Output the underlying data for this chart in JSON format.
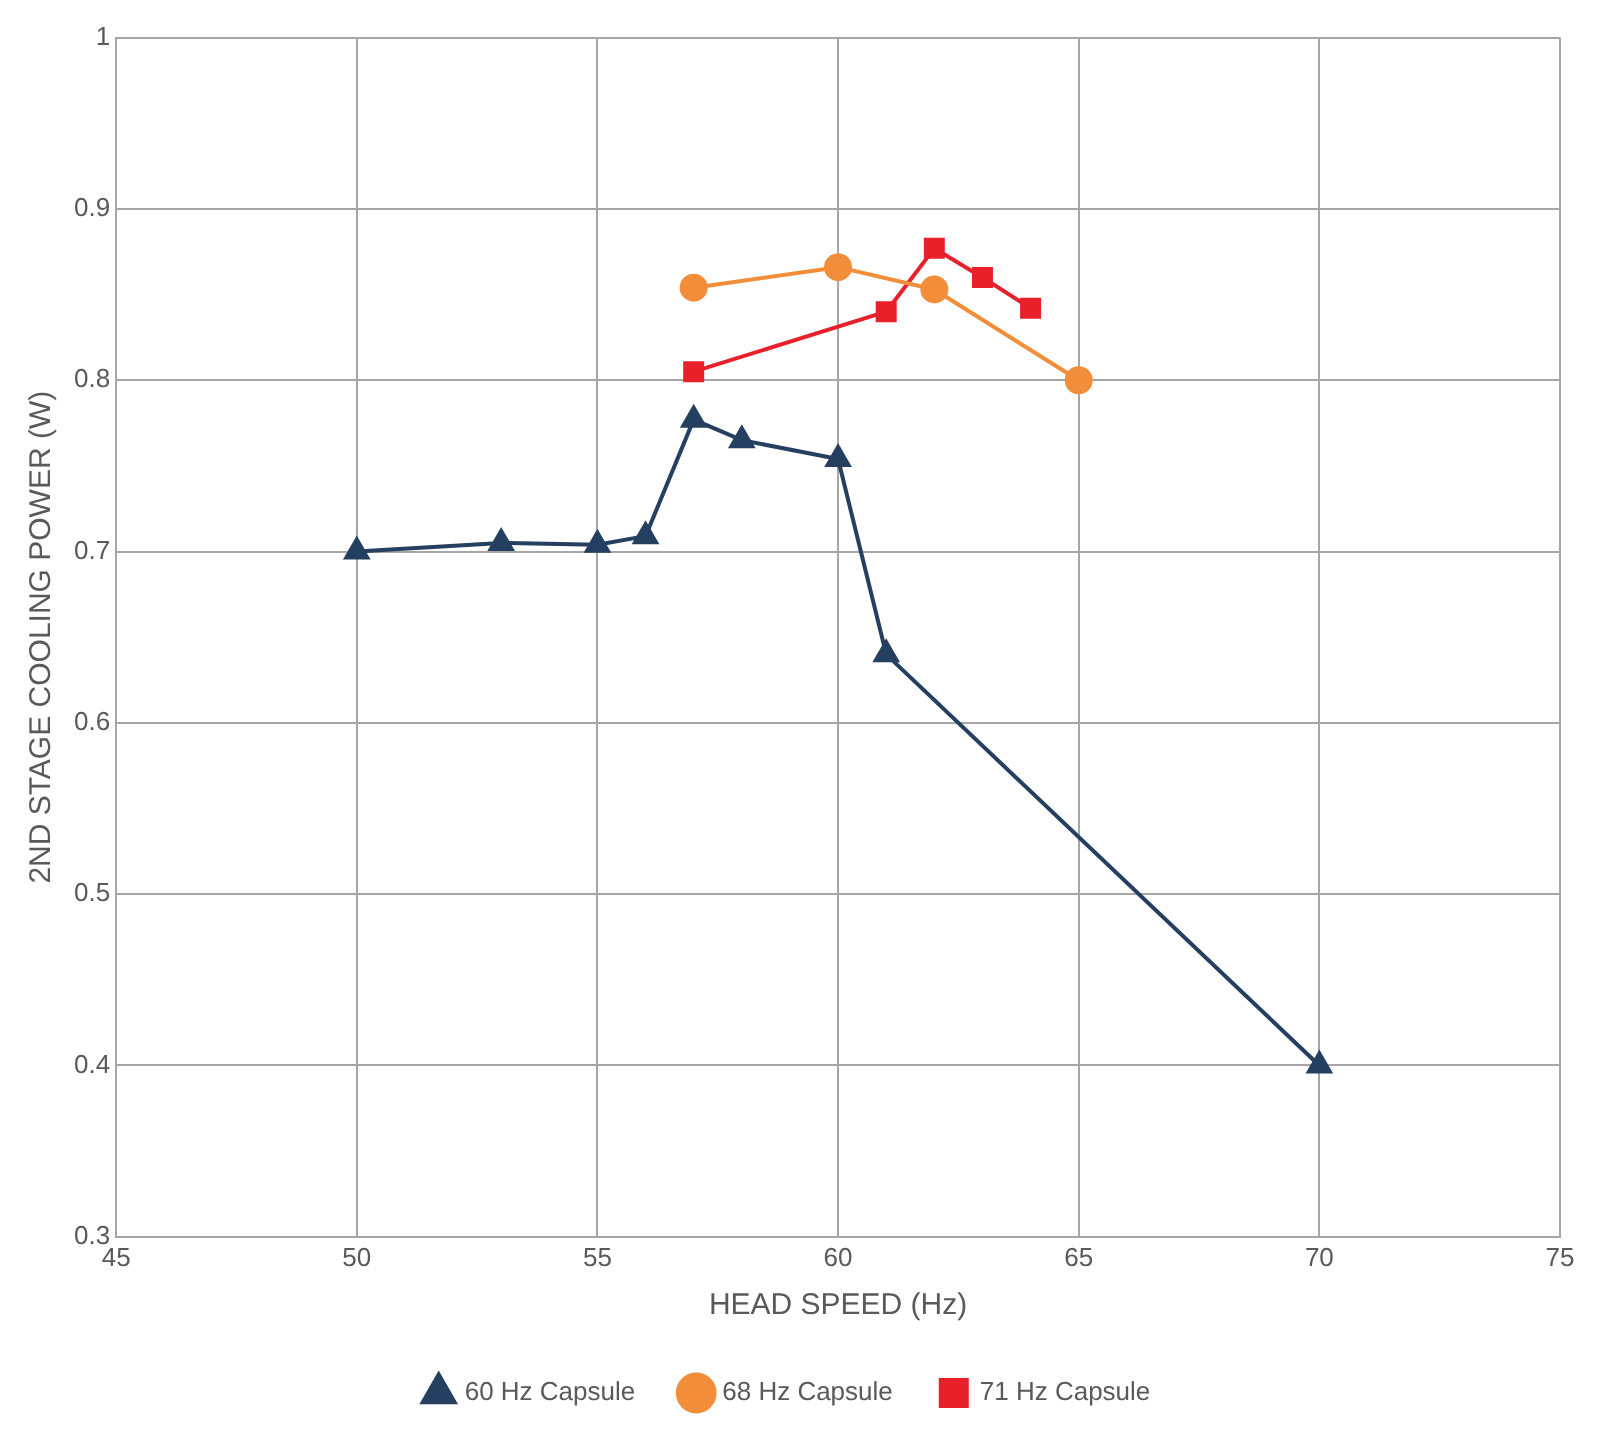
{
  "chart_data": {
    "type": "line",
    "xlabel": "HEAD SPEED (Hz)",
    "ylabel": "2ND STAGE COOLING POWER (W)",
    "xlim": [
      45,
      75
    ],
    "xticks": [
      45,
      50,
      55,
      60,
      65,
      70,
      75
    ],
    "ylim": [
      0.3,
      1
    ],
    "yticks": [
      0.3,
      0.4,
      0.5,
      0.6,
      0.7,
      0.8,
      0.9,
      1
    ],
    "grid": true,
    "legend": "bottom",
    "series": [
      {
        "name": "60 Hz Capsule",
        "color": "#243f60",
        "marker": "triangle",
        "x": [
          50,
          53,
          55,
          56,
          57,
          58,
          60,
          61,
          70
        ],
        "values": [
          0.7,
          0.705,
          0.704,
          0.709,
          0.777,
          0.765,
          0.754,
          0.64,
          0.4
        ]
      },
      {
        "name": "68 Hz Capsule",
        "color": "#f28e3a",
        "marker": "circle",
        "x": [
          57,
          60,
          62,
          65
        ],
        "values": [
          0.854,
          0.866,
          0.853,
          0.8
        ]
      },
      {
        "name": "71 Hz Capsule",
        "color": "#e8202a",
        "marker": "square",
        "x": [
          57,
          61,
          62,
          63,
          64
        ],
        "values": [
          0.805,
          0.84,
          0.877,
          0.86,
          0.842
        ]
      }
    ]
  }
}
